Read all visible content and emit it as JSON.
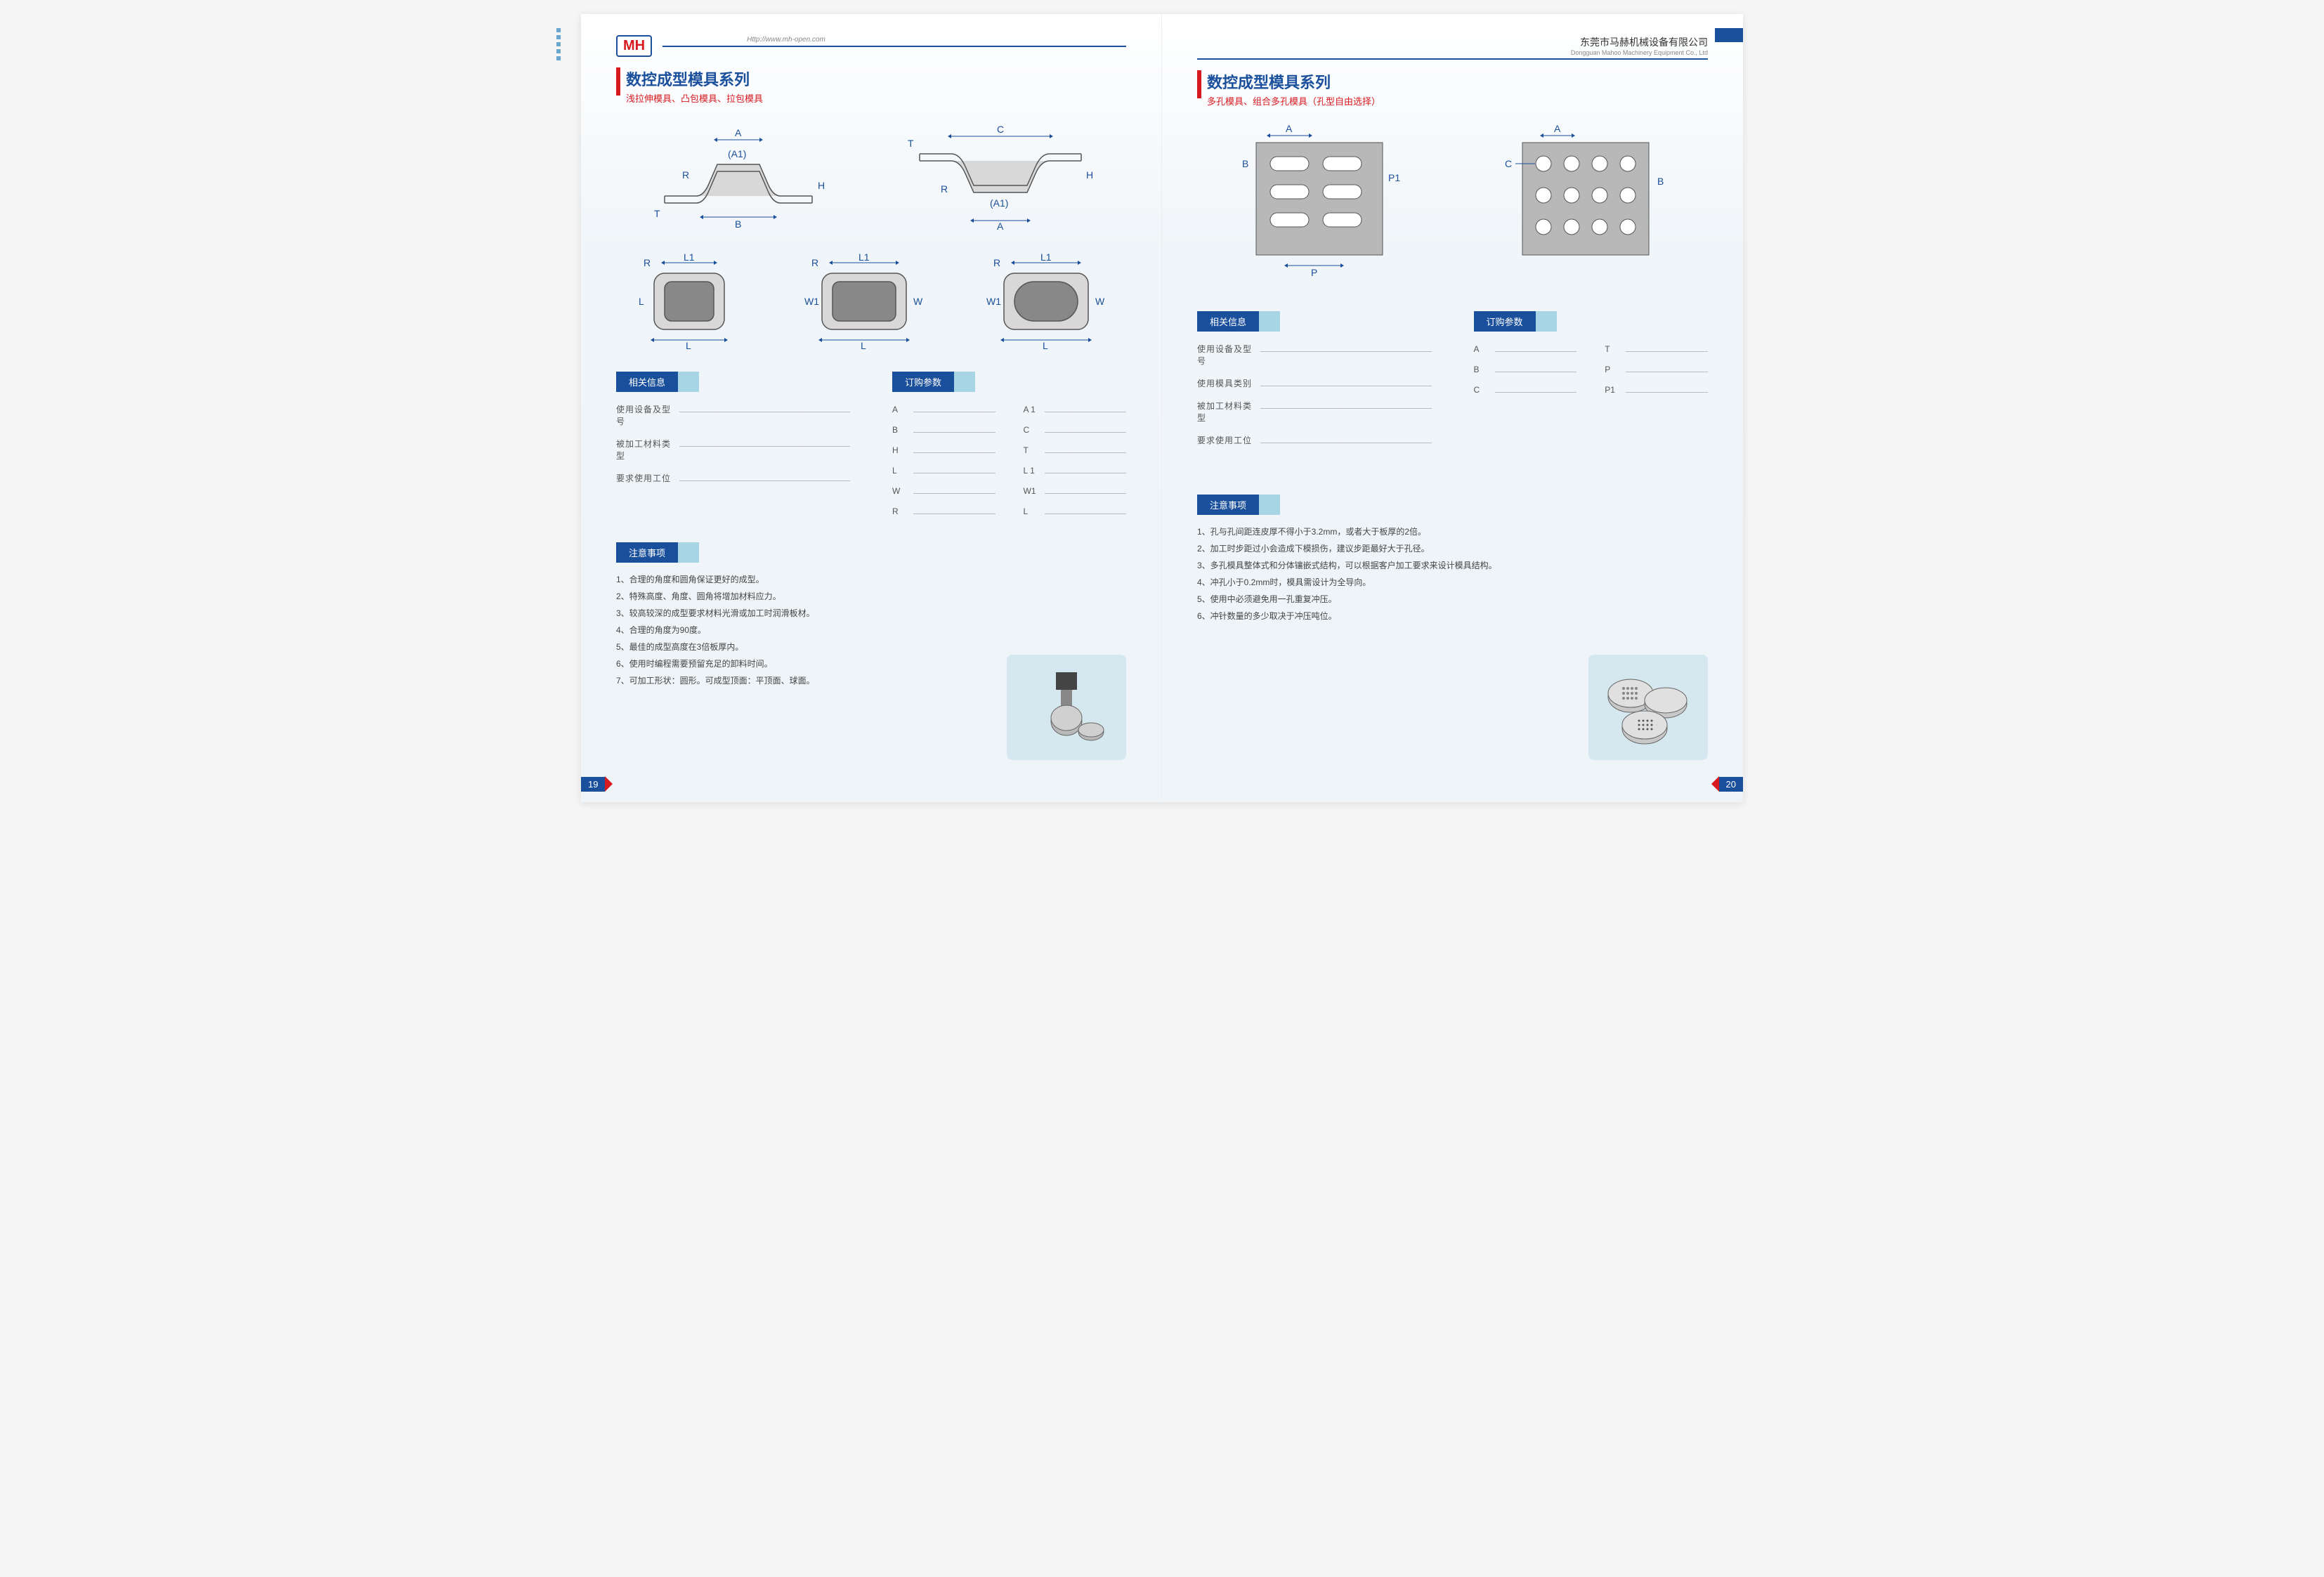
{
  "logo": "MH",
  "url": "Http://www.mh-open.com",
  "company_cn": "东莞市马赫机械设备有限公司",
  "company_en": "Dongguan Mahoo Machinery Equipment Co., Ltd",
  "colors": {
    "primary_blue": "#1a4f9c",
    "accent_red": "#d71920",
    "light_blue": "#a8d5e5",
    "bg_gradient_top": "#ffffff",
    "bg_gradient_bottom": "#eef4f8",
    "text_gray": "#555555",
    "underline": "#bbbbbb"
  },
  "left_page": {
    "page_number": "19",
    "title_main": "数控成型模具系列",
    "title_sub": "浅拉伸模具、凸包模具、拉包模具",
    "diagram_labels": {
      "top1": [
        "A",
        "(A1)",
        "R",
        "B",
        "T",
        "H"
      ],
      "top2": [
        "C",
        "T",
        "R",
        "(A1)",
        "A",
        "H"
      ],
      "bottom1": [
        "R",
        "L1",
        "L",
        "L"
      ],
      "bottom2": [
        "R",
        "L1",
        "W1",
        "W",
        "L"
      ],
      "bottom3": [
        "R",
        "L1",
        "W1",
        "W",
        "L"
      ]
    },
    "info_header": "相关信息",
    "param_header": "订购参数",
    "info_fields": [
      "使用设备及型号",
      "被加工材料类型",
      "要求使用工位"
    ],
    "param_fields_col1": [
      "A",
      "B",
      "H",
      "L",
      "W",
      "R"
    ],
    "param_fields_col2": [
      "A 1",
      "C",
      "T",
      "L 1",
      "W1",
      "L"
    ],
    "notes_header": "注意事项",
    "notes": [
      "1、合理的角度和圆角保证更好的成型。",
      "2、特殊高度、角度、圆角将增加材料应力。",
      "3、较高较深的成型要求材料光滑或加工时润滑板材。",
      "4、合理的角度为90度。",
      "5、最佳的成型高度在3倍板厚内。",
      "6、使用时编程需要预留充足的卸料时间。",
      "7、可加工形状：圆形。可成型顶面：平顶面、球面。"
    ]
  },
  "right_page": {
    "page_number": "20",
    "title_main": "数控成型模具系列",
    "title_sub": "多孔模具、组合多孔模具（孔型自由选择）",
    "diagram_labels": {
      "left": [
        "A",
        "B",
        "P1",
        "P"
      ],
      "right": [
        "A",
        "C",
        "B"
      ]
    },
    "info_header": "相关信息",
    "param_header": "订购参数",
    "info_fields": [
      "使用设备及型号",
      "使用模具类别",
      "被加工材料类型",
      "要求使用工位"
    ],
    "param_fields_col1": [
      "A",
      "B",
      "C"
    ],
    "param_fields_col2": [
      "T",
      "P",
      "P1"
    ],
    "notes_header": "注意事项",
    "notes": [
      "1、孔与孔间距连皮厚不得小于3.2mm，或者大于板厚的2倍。",
      "2、加工时步距过小会造成下模损伤，建议步距最好大于孔径。",
      "3、多孔模具整体式和分体镶嵌式结构，可以根据客户加工要求来设计模具结构。",
      "4、冲孔小于0.2mm时，模具需设计为全导向。",
      "5、使用中必须避免用一孔重复冲压。",
      "6、冲针数量的多少取决于冲压吨位。"
    ]
  }
}
